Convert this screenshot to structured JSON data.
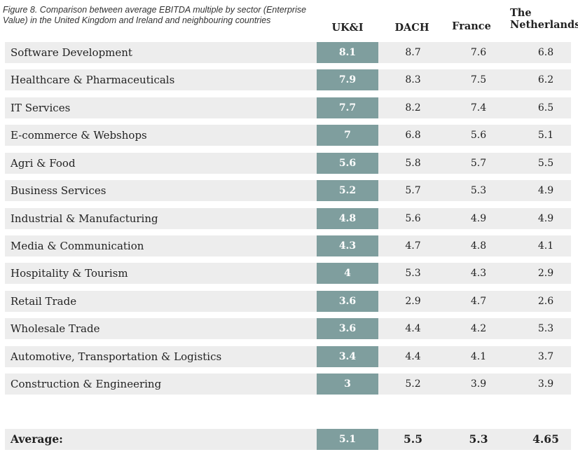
{
  "chart_data": {
    "type": "table",
    "title": "Figure 8. Comparison between average EBITDA multiple by sector (Enterprise Value) in the United Kingdom and Ireland and neighbouring countries",
    "columns": [
      "UK&I",
      "DACH",
      "France",
      "The Netherlands"
    ],
    "rows": [
      {
        "sector": "Software Development",
        "values": [
          "8.1",
          "8.7",
          "7.6",
          "6.8"
        ]
      },
      {
        "sector": "Healthcare & Pharmaceuticals",
        "values": [
          "7.9",
          "8.3",
          "7.5",
          "6.2"
        ]
      },
      {
        "sector": "IT Services",
        "values": [
          "7.7",
          "8.2",
          "7.4",
          "6.5"
        ]
      },
      {
        "sector": "E-commerce & Webshops",
        "values": [
          "7",
          "6.8",
          "5.6",
          "5.1"
        ]
      },
      {
        "sector": "Agri & Food",
        "values": [
          "5.6",
          "5.8",
          "5.7",
          "5.5"
        ]
      },
      {
        "sector": "Business Services",
        "values": [
          "5.2",
          "5.7",
          "5.3",
          "4.9"
        ]
      },
      {
        "sector": "Industrial & Manufacturing",
        "values": [
          "4.8",
          "5.6",
          "4.9",
          "4.9"
        ]
      },
      {
        "sector": "Media & Communication",
        "values": [
          "4.3",
          "4.7",
          "4.8",
          "4.1"
        ]
      },
      {
        "sector": "Hospitality & Tourism",
        "values": [
          "4",
          "5.3",
          "4.3",
          "2.9"
        ]
      },
      {
        "sector": "Retail Trade",
        "values": [
          "3.6",
          "2.9",
          "4.7",
          "2.6"
        ]
      },
      {
        "sector": "Wholesale Trade",
        "values": [
          "3.6",
          "4.4",
          "4.2",
          "5.3"
        ]
      },
      {
        "sector": "Automotive, Transportation & Logistics",
        "values": [
          "3.4",
          "4.4",
          "4.1",
          "3.7"
        ]
      },
      {
        "sector": "Construction & Engineering",
        "values": [
          "3",
          "5.2",
          "3.9",
          "3.9"
        ]
      }
    ],
    "average": {
      "label": "Average:",
      "values": [
        "5.1",
        "5.5",
        "5.3",
        "4.65"
      ]
    },
    "highlight_column": "UK&I",
    "colors": {
      "highlight": "#7f9e9e",
      "row_background": "#ededed"
    }
  }
}
